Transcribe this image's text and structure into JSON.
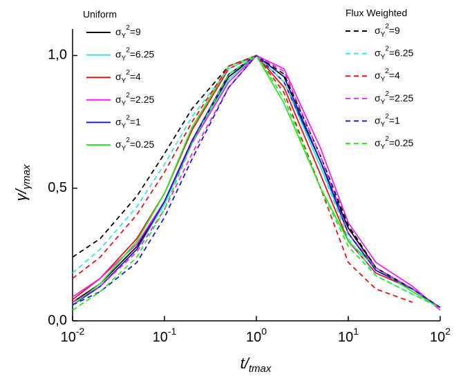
{
  "chart_data": {
    "type": "line",
    "xlabel": "t/tmax",
    "ylabel": "γ/γmax",
    "x": [
      0.01,
      0.02,
      0.05,
      0.1,
      0.2,
      0.5,
      1,
      2,
      5,
      10,
      20,
      50,
      100
    ],
    "xlog": true,
    "xlim": [
      0.01,
      100
    ],
    "xticks": [
      {
        "value": 0.01,
        "label": "10-2"
      },
      {
        "value": 0.1,
        "label": "10-1"
      },
      {
        "value": 1,
        "label": "100"
      },
      {
        "value": 10,
        "label": "101"
      },
      {
        "value": 100,
        "label": "102"
      }
    ],
    "ylim": [
      0,
      1.1
    ],
    "yticks": [
      {
        "value": 0,
        "label": "0,0"
      },
      {
        "value": 0.5,
        "label": "0,5"
      },
      {
        "value": 1,
        "label": "1,0"
      }
    ],
    "legend_groups": [
      "Uniform",
      "Flux Weighted"
    ],
    "series": [
      {
        "name": "σY2=9",
        "color": "#000000",
        "dashed": false,
        "values": [
          0.07,
          0.14,
          0.28,
          0.45,
          0.68,
          0.92,
          1.0,
          0.92,
          0.6,
          0.35,
          0.2,
          0.12,
          0.05
        ]
      },
      {
        "name": "σY2=6.25",
        "color": "#33e6e6",
        "dashed": false,
        "values": [
          0.06,
          0.13,
          0.27,
          0.44,
          0.67,
          0.91,
          1.0,
          0.9,
          0.58,
          0.33,
          0.19,
          0.12,
          0.05
        ]
      },
      {
        "name": "σY2=4",
        "color": "#ee1111",
        "dashed": false,
        "values": [
          0.08,
          0.16,
          0.31,
          0.48,
          0.72,
          0.95,
          1.0,
          0.88,
          0.55,
          0.3,
          0.18,
          0.12,
          0.05
        ]
      },
      {
        "name": "σY2=2.25",
        "color": "#ee22ee",
        "dashed": false,
        "values": [
          0.09,
          0.16,
          0.29,
          0.45,
          0.67,
          0.9,
          1.0,
          0.95,
          0.65,
          0.37,
          0.22,
          0.13,
          0.04
        ]
      },
      {
        "name": "σY2=1",
        "color": "#1a1ad0",
        "dashed": false,
        "values": [
          0.06,
          0.13,
          0.27,
          0.45,
          0.68,
          0.93,
          1.0,
          0.9,
          0.6,
          0.33,
          0.19,
          0.12,
          0.05
        ]
      },
      {
        "name": "σY2=0.25",
        "color": "#22ee22",
        "dashed": false,
        "values": [
          0.06,
          0.14,
          0.3,
          0.48,
          0.73,
          0.96,
          1.0,
          0.82,
          0.5,
          0.3,
          0.2,
          0.11,
          0.05
        ]
      },
      {
        "name": "σY2=9",
        "color": "#000000",
        "dashed": true,
        "values": [
          0.24,
          0.31,
          0.47,
          0.63,
          0.8,
          0.96,
          1.0,
          0.93,
          0.62,
          0.36,
          0.2,
          0.12,
          0.05
        ]
      },
      {
        "name": "σY2=6.25",
        "color": "#33e6e6",
        "dashed": true,
        "values": [
          0.18,
          0.27,
          0.43,
          0.59,
          0.77,
          0.95,
          1.0,
          0.9,
          0.58,
          0.31,
          0.17,
          0.1,
          0.05
        ]
      },
      {
        "name": "σY2=4",
        "color": "#ee1111",
        "dashed": true,
        "values": [
          0.16,
          0.24,
          0.4,
          0.56,
          0.75,
          0.96,
          1.0,
          0.86,
          0.5,
          0.22,
          0.12,
          0.07,
          null
        ]
      },
      {
        "name": "σY2=2.25",
        "color": "#ee22ee",
        "dashed": true,
        "values": [
          0.07,
          0.13,
          0.26,
          0.42,
          0.63,
          0.88,
          1.0,
          0.94,
          0.62,
          0.33,
          0.2,
          0.12,
          0.05
        ]
      },
      {
        "name": "σY2=1",
        "color": "#1a1ad0",
        "dashed": true,
        "values": [
          0.06,
          0.11,
          0.22,
          0.39,
          0.61,
          0.88,
          1.0,
          0.92,
          0.6,
          0.33,
          0.19,
          0.12,
          0.05
        ]
      },
      {
        "name": "σY2=0.25",
        "color": "#22ee22",
        "dashed": true,
        "values": [
          0.04,
          0.11,
          0.24,
          0.42,
          0.67,
          0.93,
          1.0,
          0.84,
          0.5,
          0.28,
          0.17,
          0.1,
          0.05
        ]
      }
    ]
  }
}
